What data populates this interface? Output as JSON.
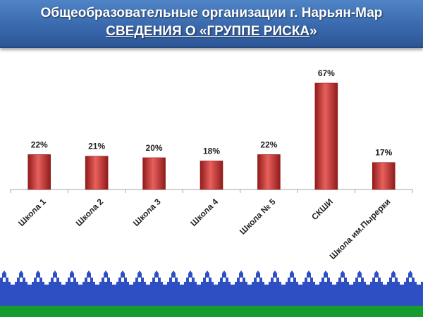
{
  "header": {
    "line1": "Общеобразовательные организации г. Нарьян-Мар",
    "line2_underlined": "СВЕДЕНИЯ О «ГРУППЕ РИСКА",
    "line2_tail": "»"
  },
  "colors": {
    "bar": "#c0302f",
    "bar_light": "#e8605c",
    "bar_dark": "#8f1c1b",
    "banner": "#3a6aae",
    "ornament": "#2e4fc4",
    "stripe_green": "#169b2e"
  },
  "chart_data": {
    "type": "bar",
    "categories": [
      "Школа 1",
      "Школа 2",
      "Школа 3",
      "Школа 4",
      "Школа № 5",
      "СКШИ",
      "Школа им.Пырерки"
    ],
    "values": [
      22,
      21,
      20,
      18,
      22,
      67,
      17
    ],
    "data_labels": [
      "22%",
      "21%",
      "20%",
      "18%",
      "22%",
      "67%",
      "17%"
    ],
    "unit": "%",
    "ylim": [
      0,
      70
    ],
    "grid": false,
    "legend": "none"
  }
}
